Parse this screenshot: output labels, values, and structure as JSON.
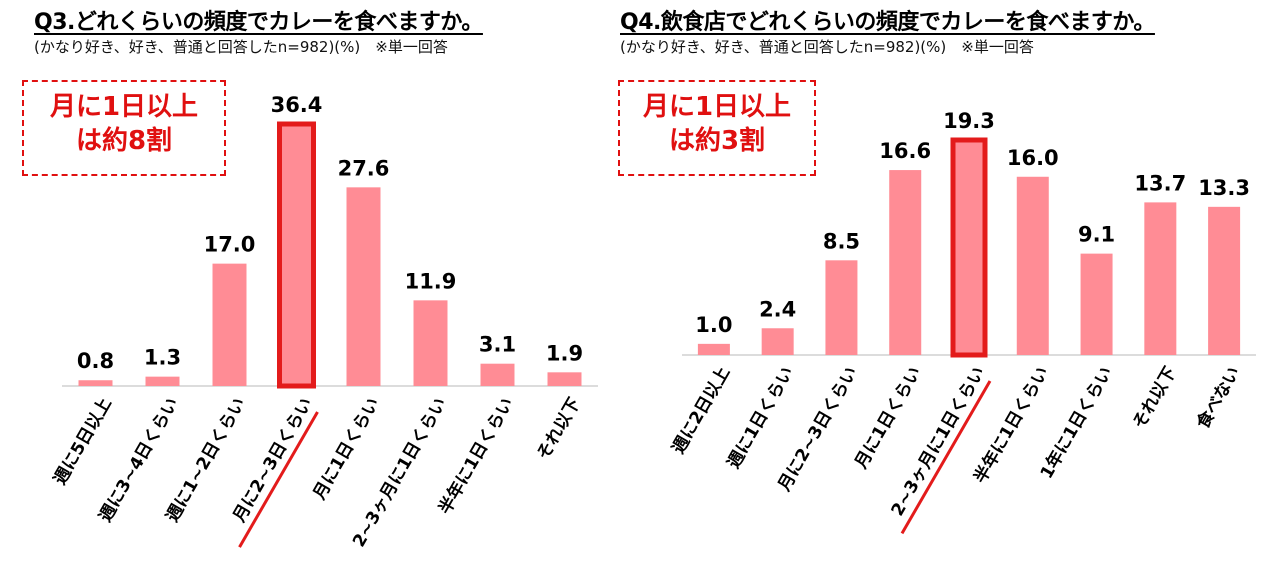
{
  "colors": {
    "bar": "#ff8c95",
    "highlight": "#e31b1b",
    "axis": "#d0d0d0",
    "text": "#000000"
  },
  "charts": [
    {
      "title": "Q3.どれくらいの頻度でカレーを食べますか。",
      "subtitle": "(かなり好き、好き、普通と回答したn=982)(%)　※単一回答",
      "callout_lines": [
        "月に1日以上",
        "は約8割"
      ]
    },
    {
      "title": "Q4.飲食店でどれくらいの頻度でカレーを食べますか。",
      "subtitle": "(かなり好き、好き、普通と回答したn=982)(%)　※単一回答",
      "callout_lines": [
        "月に1日以上",
        "は約3割"
      ]
    }
  ],
  "chart_data": [
    {
      "type": "bar",
      "categories": [
        "週に5日以上",
        "週に3~4日くらい",
        "週に1~2日くらい",
        "月に2~3日くらい",
        "月に1日くらい",
        "2~3ヶ月に1日くらい",
        "半年に1日くらい",
        "それ以下"
      ],
      "values": [
        0.8,
        1.3,
        17.0,
        36.4,
        27.6,
        11.9,
        3.1,
        1.9
      ],
      "data_labels": [
        "0.8",
        "1.3",
        "17.0",
        "36.4",
        "27.6",
        "11.9",
        "3.1",
        "1.9"
      ],
      "highlight_index": 3,
      "title": "Q3.どれくらいの頻度でカレーを食べますか。",
      "xlabel": "",
      "ylabel": "",
      "ylim": [
        0,
        36.4
      ],
      "grid": false,
      "legend": "none"
    },
    {
      "type": "bar",
      "categories": [
        "週に2日以上",
        "週に1日くらい",
        "月に2~3日くらい",
        "月に1日くらい",
        "2~3ヶ月に1日くらい",
        "半年に1日くらい",
        "1年に1日くらい",
        "それ以下",
        "食べない"
      ],
      "values": [
        1.0,
        2.4,
        8.5,
        16.6,
        19.3,
        16.0,
        9.1,
        13.7,
        13.3
      ],
      "data_labels": [
        "1.0",
        "2.4",
        "8.5",
        "16.6",
        "19.3",
        "16.0",
        "9.1",
        "13.7",
        "13.3"
      ],
      "highlight_index": 4,
      "title": "Q4.飲食店でどれくらいの頻度でカレーを食べますか。",
      "xlabel": "",
      "ylabel": "",
      "ylim": [
        0,
        19.3
      ],
      "grid": false,
      "legend": "none"
    }
  ]
}
